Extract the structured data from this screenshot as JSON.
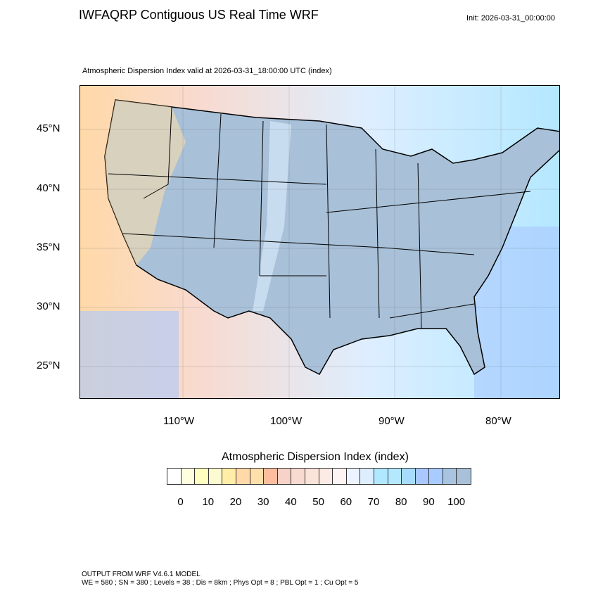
{
  "header": {
    "title": "IWFAQRP Contiguous US Real Time WRF",
    "init": "Init: 2026-03-31_00:00:00",
    "subtitle": "Atmospheric Dispersion Index valid at 2026-03-31_18:00:00 UTC   (index)"
  },
  "axes": {
    "lat_labels": [
      "45°N",
      "40°N",
      "35°N",
      "30°N",
      "25°N"
    ],
    "lon_labels": [
      "110°W",
      "100°W",
      "90°W",
      "80°W"
    ]
  },
  "colorbar": {
    "title": "Atmospheric Dispersion Index  (index)",
    "labels": [
      "0",
      "10",
      "20",
      "30",
      "40",
      "50",
      "60",
      "70",
      "80",
      "90",
      "100"
    ],
    "colors": [
      "#FFFFFF",
      "#FFFFE0",
      "#FFFFC0",
      "#FCFAD0",
      "#FFEDA8",
      "#FFD9A8",
      "#FFDFAA",
      "#FFBDA0",
      "#F8D2C8",
      "#F8DAD0",
      "#FAE4DA",
      "#FCEAE4",
      "#FFF4F4",
      "#EEF4FF",
      "#DDEEFF",
      "#B0E8FF",
      "#B4E8FF",
      "#A8DCFF",
      "#A8C8FF",
      "#A8CCFF",
      "#A8C4E0",
      "#A8C0D8"
    ]
  },
  "footer": {
    "line1": "OUTPUT FROM WRF V4.6.1 MODEL",
    "line2": "WE = 580 ; SN = 380 ; Levels = 38 ; Dis = 8km ; Phys Opt = 8 ; PBL Opt = 1 ; Cu Opt = 5"
  }
}
